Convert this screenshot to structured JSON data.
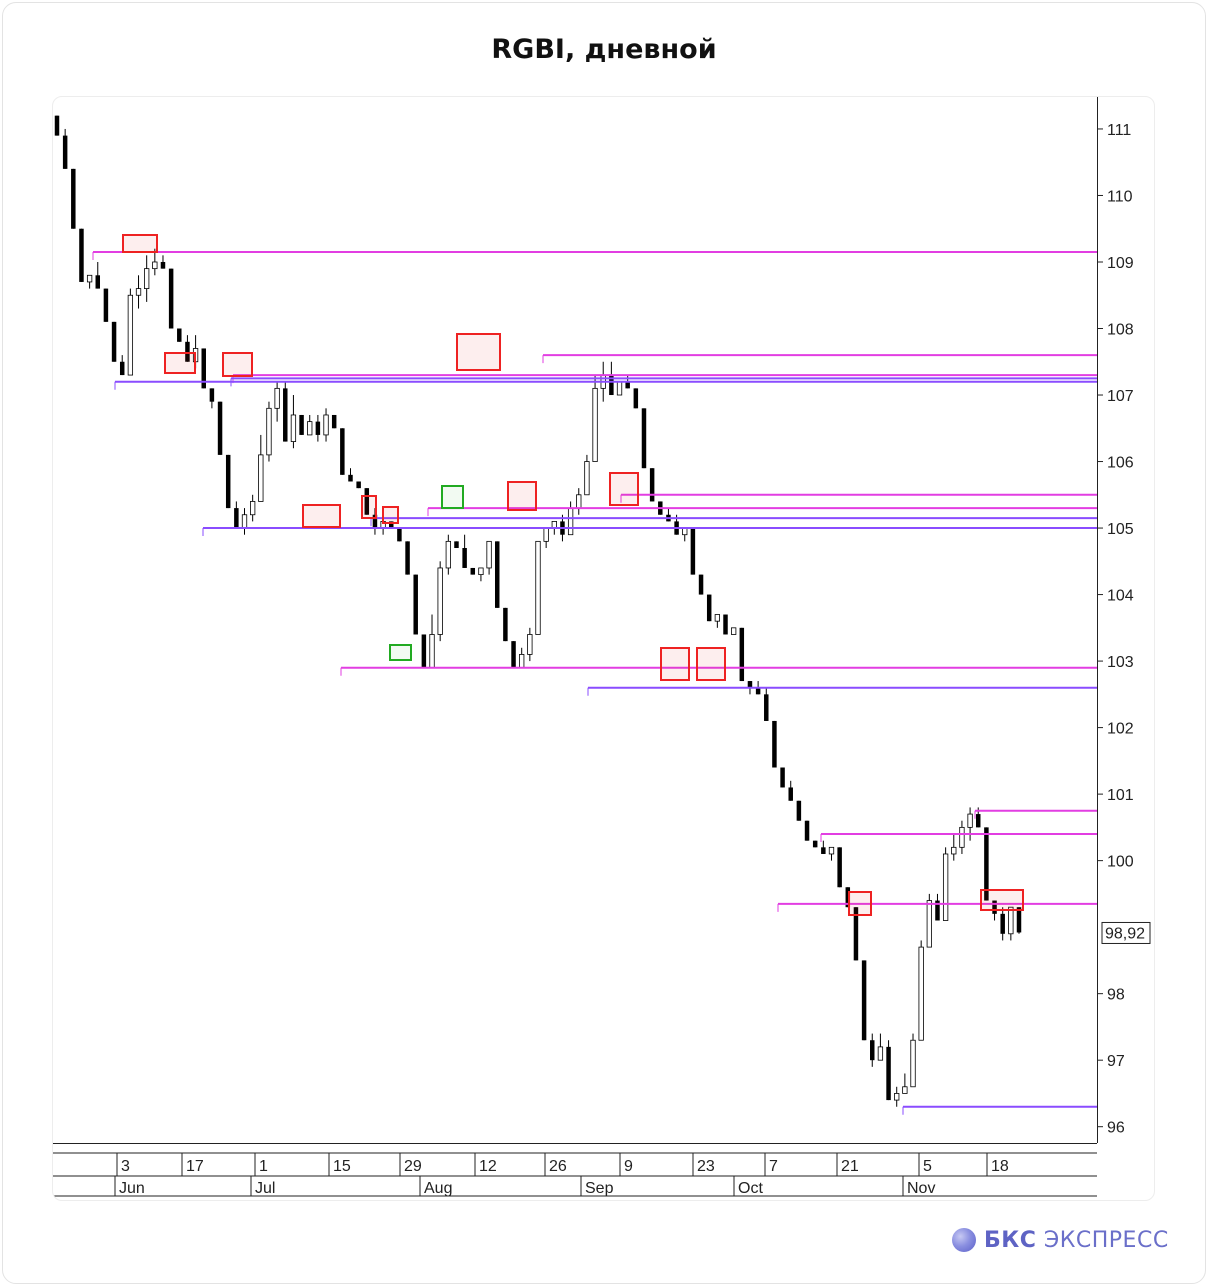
{
  "title": "RGBI, дневной",
  "brand": {
    "bold": "БКС",
    "regular": "ЭКСПРЕСС"
  },
  "chart_data": {
    "type": "candlestick",
    "title": "RGBI, дневной",
    "ylim": [
      95.8,
      111.3
    ],
    "y_ticks": [
      "111",
      "110",
      "109",
      "108",
      "107",
      "106",
      "105",
      "104",
      "103",
      "102",
      "101",
      "100",
      "98",
      "97",
      "96"
    ],
    "last_price_label": "98,92",
    "x_day_labels": [
      "3",
      "17",
      "1",
      "15",
      "29",
      "12",
      "26",
      "9",
      "23",
      "7",
      "21",
      "5",
      "18"
    ],
    "x_month_labels": [
      "Jun",
      "Jul",
      "Aug",
      "Sep",
      "Oct",
      "Nov"
    ],
    "candles": [
      [
        111.2,
        111.2,
        110.9,
        110.9
      ],
      [
        110.9,
        111.0,
        110.4,
        110.4
      ],
      [
        110.4,
        110.4,
        109.5,
        109.5
      ],
      [
        109.5,
        109.5,
        108.7,
        108.7
      ],
      [
        108.7,
        108.8,
        108.6,
        108.8
      ],
      [
        108.8,
        109.0,
        108.6,
        108.6
      ],
      [
        108.6,
        108.6,
        108.1,
        108.1
      ],
      [
        108.1,
        108.1,
        107.5,
        107.5
      ],
      [
        107.5,
        107.6,
        107.3,
        107.3
      ],
      [
        107.3,
        108.6,
        107.3,
        108.5
      ],
      [
        108.5,
        108.8,
        108.3,
        108.6
      ],
      [
        108.6,
        109.1,
        108.4,
        108.9
      ],
      [
        108.9,
        109.2,
        108.8,
        109.0
      ],
      [
        109.0,
        109.1,
        108.9,
        108.9
      ],
      [
        108.9,
        108.9,
        108.0,
        108.0
      ],
      [
        108.0,
        108.0,
        107.8,
        107.8
      ],
      [
        107.8,
        107.9,
        107.5,
        107.5
      ],
      [
        107.5,
        107.9,
        107.4,
        107.7
      ],
      [
        107.7,
        107.7,
        107.1,
        107.1
      ],
      [
        107.1,
        107.1,
        106.8,
        106.9
      ],
      [
        106.9,
        106.9,
        106.1,
        106.1
      ],
      [
        106.1,
        106.1,
        105.3,
        105.3
      ],
      [
        105.3,
        105.4,
        105.0,
        105.0
      ],
      [
        105.0,
        105.3,
        104.9,
        105.2
      ],
      [
        105.2,
        105.5,
        105.1,
        105.4
      ],
      [
        105.4,
        106.4,
        105.4,
        106.1
      ],
      [
        106.1,
        106.9,
        106.0,
        106.8
      ],
      [
        106.8,
        107.2,
        106.6,
        107.1
      ],
      [
        107.1,
        107.2,
        106.3,
        106.3
      ],
      [
        106.3,
        107.0,
        106.2,
        106.7
      ],
      [
        106.7,
        106.7,
        106.4,
        106.4
      ],
      [
        106.4,
        106.7,
        106.4,
        106.6
      ],
      [
        106.6,
        106.7,
        106.3,
        106.4
      ],
      [
        106.4,
        106.8,
        106.3,
        106.7
      ],
      [
        106.7,
        106.7,
        106.5,
        106.5
      ],
      [
        106.5,
        106.5,
        105.8,
        105.8
      ],
      [
        105.8,
        105.9,
        105.7,
        105.7
      ],
      [
        105.7,
        105.7,
        105.6,
        105.6
      ],
      [
        105.6,
        105.6,
        105.2,
        105.2
      ],
      [
        105.2,
        105.3,
        104.9,
        105.0
      ],
      [
        105.0,
        105.1,
        104.9,
        105.1
      ],
      [
        105.1,
        105.1,
        105.0,
        105.0
      ],
      [
        105.0,
        105.0,
        104.8,
        104.8
      ],
      [
        104.8,
        104.8,
        104.3,
        104.3
      ],
      [
        104.3,
        104.3,
        103.4,
        103.4
      ],
      [
        103.4,
        103.4,
        102.9,
        102.9
      ],
      [
        102.9,
        103.7,
        102.9,
        103.4
      ],
      [
        103.4,
        104.5,
        103.3,
        104.4
      ],
      [
        104.4,
        104.9,
        104.3,
        104.8
      ],
      [
        104.8,
        104.8,
        104.7,
        104.7
      ],
      [
        104.7,
        104.9,
        104.4,
        104.4
      ],
      [
        104.4,
        104.4,
        104.3,
        104.3
      ],
      [
        104.3,
        104.4,
        104.2,
        104.4
      ],
      [
        104.4,
        104.8,
        104.3,
        104.8
      ],
      [
        104.8,
        104.8,
        103.8,
        103.8
      ],
      [
        103.8,
        103.8,
        103.3,
        103.3
      ],
      [
        103.3,
        103.3,
        102.9,
        102.9
      ],
      [
        102.9,
        103.2,
        102.9,
        103.1
      ],
      [
        103.1,
        103.5,
        103.0,
        103.4
      ],
      [
        103.4,
        104.8,
        103.4,
        104.8
      ],
      [
        104.8,
        105.0,
        104.7,
        105.0
      ],
      [
        105.0,
        105.1,
        104.9,
        105.1
      ],
      [
        105.1,
        105.2,
        104.8,
        104.9
      ],
      [
        104.9,
        105.4,
        104.9,
        105.3
      ],
      [
        105.3,
        105.6,
        105.2,
        105.5
      ],
      [
        105.5,
        106.1,
        105.5,
        106.0
      ],
      [
        106.0,
        107.3,
        106.0,
        107.1
      ],
      [
        107.1,
        107.5,
        106.9,
        107.3
      ],
      [
        107.3,
        107.5,
        107.0,
        107.0
      ],
      [
        107.0,
        107.2,
        107.0,
        107.2
      ],
      [
        107.2,
        107.3,
        107.1,
        107.1
      ],
      [
        107.1,
        107.1,
        106.8,
        106.8
      ],
      [
        106.8,
        106.8,
        105.9,
        105.9
      ],
      [
        105.9,
        105.9,
        105.4,
        105.4
      ],
      [
        105.4,
        105.4,
        105.2,
        105.2
      ],
      [
        105.2,
        105.3,
        105.1,
        105.1
      ],
      [
        105.1,
        105.2,
        104.9,
        104.9
      ],
      [
        104.9,
        105.0,
        104.8,
        105.0
      ],
      [
        105.0,
        105.0,
        104.3,
        104.3
      ],
      [
        104.3,
        104.3,
        104.0,
        104.0
      ],
      [
        104.0,
        104.0,
        103.6,
        103.6
      ],
      [
        103.6,
        103.7,
        103.5,
        103.7
      ],
      [
        103.7,
        103.7,
        103.4,
        103.4
      ],
      [
        103.4,
        103.5,
        103.4,
        103.5
      ],
      [
        103.5,
        103.5,
        102.7,
        102.7
      ],
      [
        102.7,
        102.7,
        102.5,
        102.6
      ],
      [
        102.6,
        102.7,
        102.5,
        102.5
      ],
      [
        102.5,
        102.6,
        102.1,
        102.1
      ],
      [
        102.1,
        102.1,
        101.4,
        101.4
      ],
      [
        101.4,
        101.4,
        101.1,
        101.1
      ],
      [
        101.1,
        101.2,
        100.9,
        100.9
      ],
      [
        100.9,
        100.9,
        100.6,
        100.6
      ],
      [
        100.6,
        100.6,
        100.3,
        100.3
      ],
      [
        100.3,
        100.3,
        100.2,
        100.2
      ],
      [
        100.2,
        100.3,
        100.1,
        100.1
      ],
      [
        100.1,
        100.2,
        100.0,
        100.2
      ],
      [
        100.2,
        100.2,
        99.6,
        99.6
      ],
      [
        99.6,
        99.6,
        99.3,
        99.3
      ],
      [
        99.3,
        99.3,
        98.5,
        98.5
      ],
      [
        98.5,
        98.5,
        97.3,
        97.3
      ],
      [
        97.3,
        97.4,
        96.9,
        97.0
      ],
      [
        97.0,
        97.4,
        97.0,
        97.2
      ],
      [
        97.2,
        97.3,
        96.4,
        96.4
      ],
      [
        96.4,
        96.6,
        96.3,
        96.5
      ],
      [
        96.5,
        96.8,
        96.5,
        96.6
      ],
      [
        96.6,
        97.4,
        96.6,
        97.3
      ],
      [
        97.3,
        98.8,
        97.3,
        98.7
      ],
      [
        98.7,
        99.5,
        98.7,
        99.4
      ],
      [
        99.4,
        99.5,
        99.1,
        99.1
      ],
      [
        99.1,
        100.2,
        99.1,
        100.1
      ],
      [
        100.1,
        100.4,
        100.0,
        100.2
      ],
      [
        100.2,
        100.6,
        100.1,
        100.5
      ],
      [
        100.5,
        100.8,
        100.3,
        100.7
      ],
      [
        100.7,
        100.8,
        100.5,
        100.5
      ],
      [
        100.5,
        100.5,
        99.4,
        99.4
      ],
      [
        99.4,
        99.4,
        99.1,
        99.2
      ],
      [
        99.2,
        99.3,
        98.8,
        98.9
      ],
      [
        98.9,
        99.3,
        98.8,
        99.3
      ],
      [
        99.3,
        99.3,
        98.9,
        98.92
      ]
    ],
    "levels": [
      109.15,
      107.6,
      107.3,
      107.25,
      107.2,
      105.5,
      105.3,
      105.15,
      105.0,
      102.9,
      102.6,
      100.75,
      100.4,
      99.35,
      96.3
    ]
  }
}
